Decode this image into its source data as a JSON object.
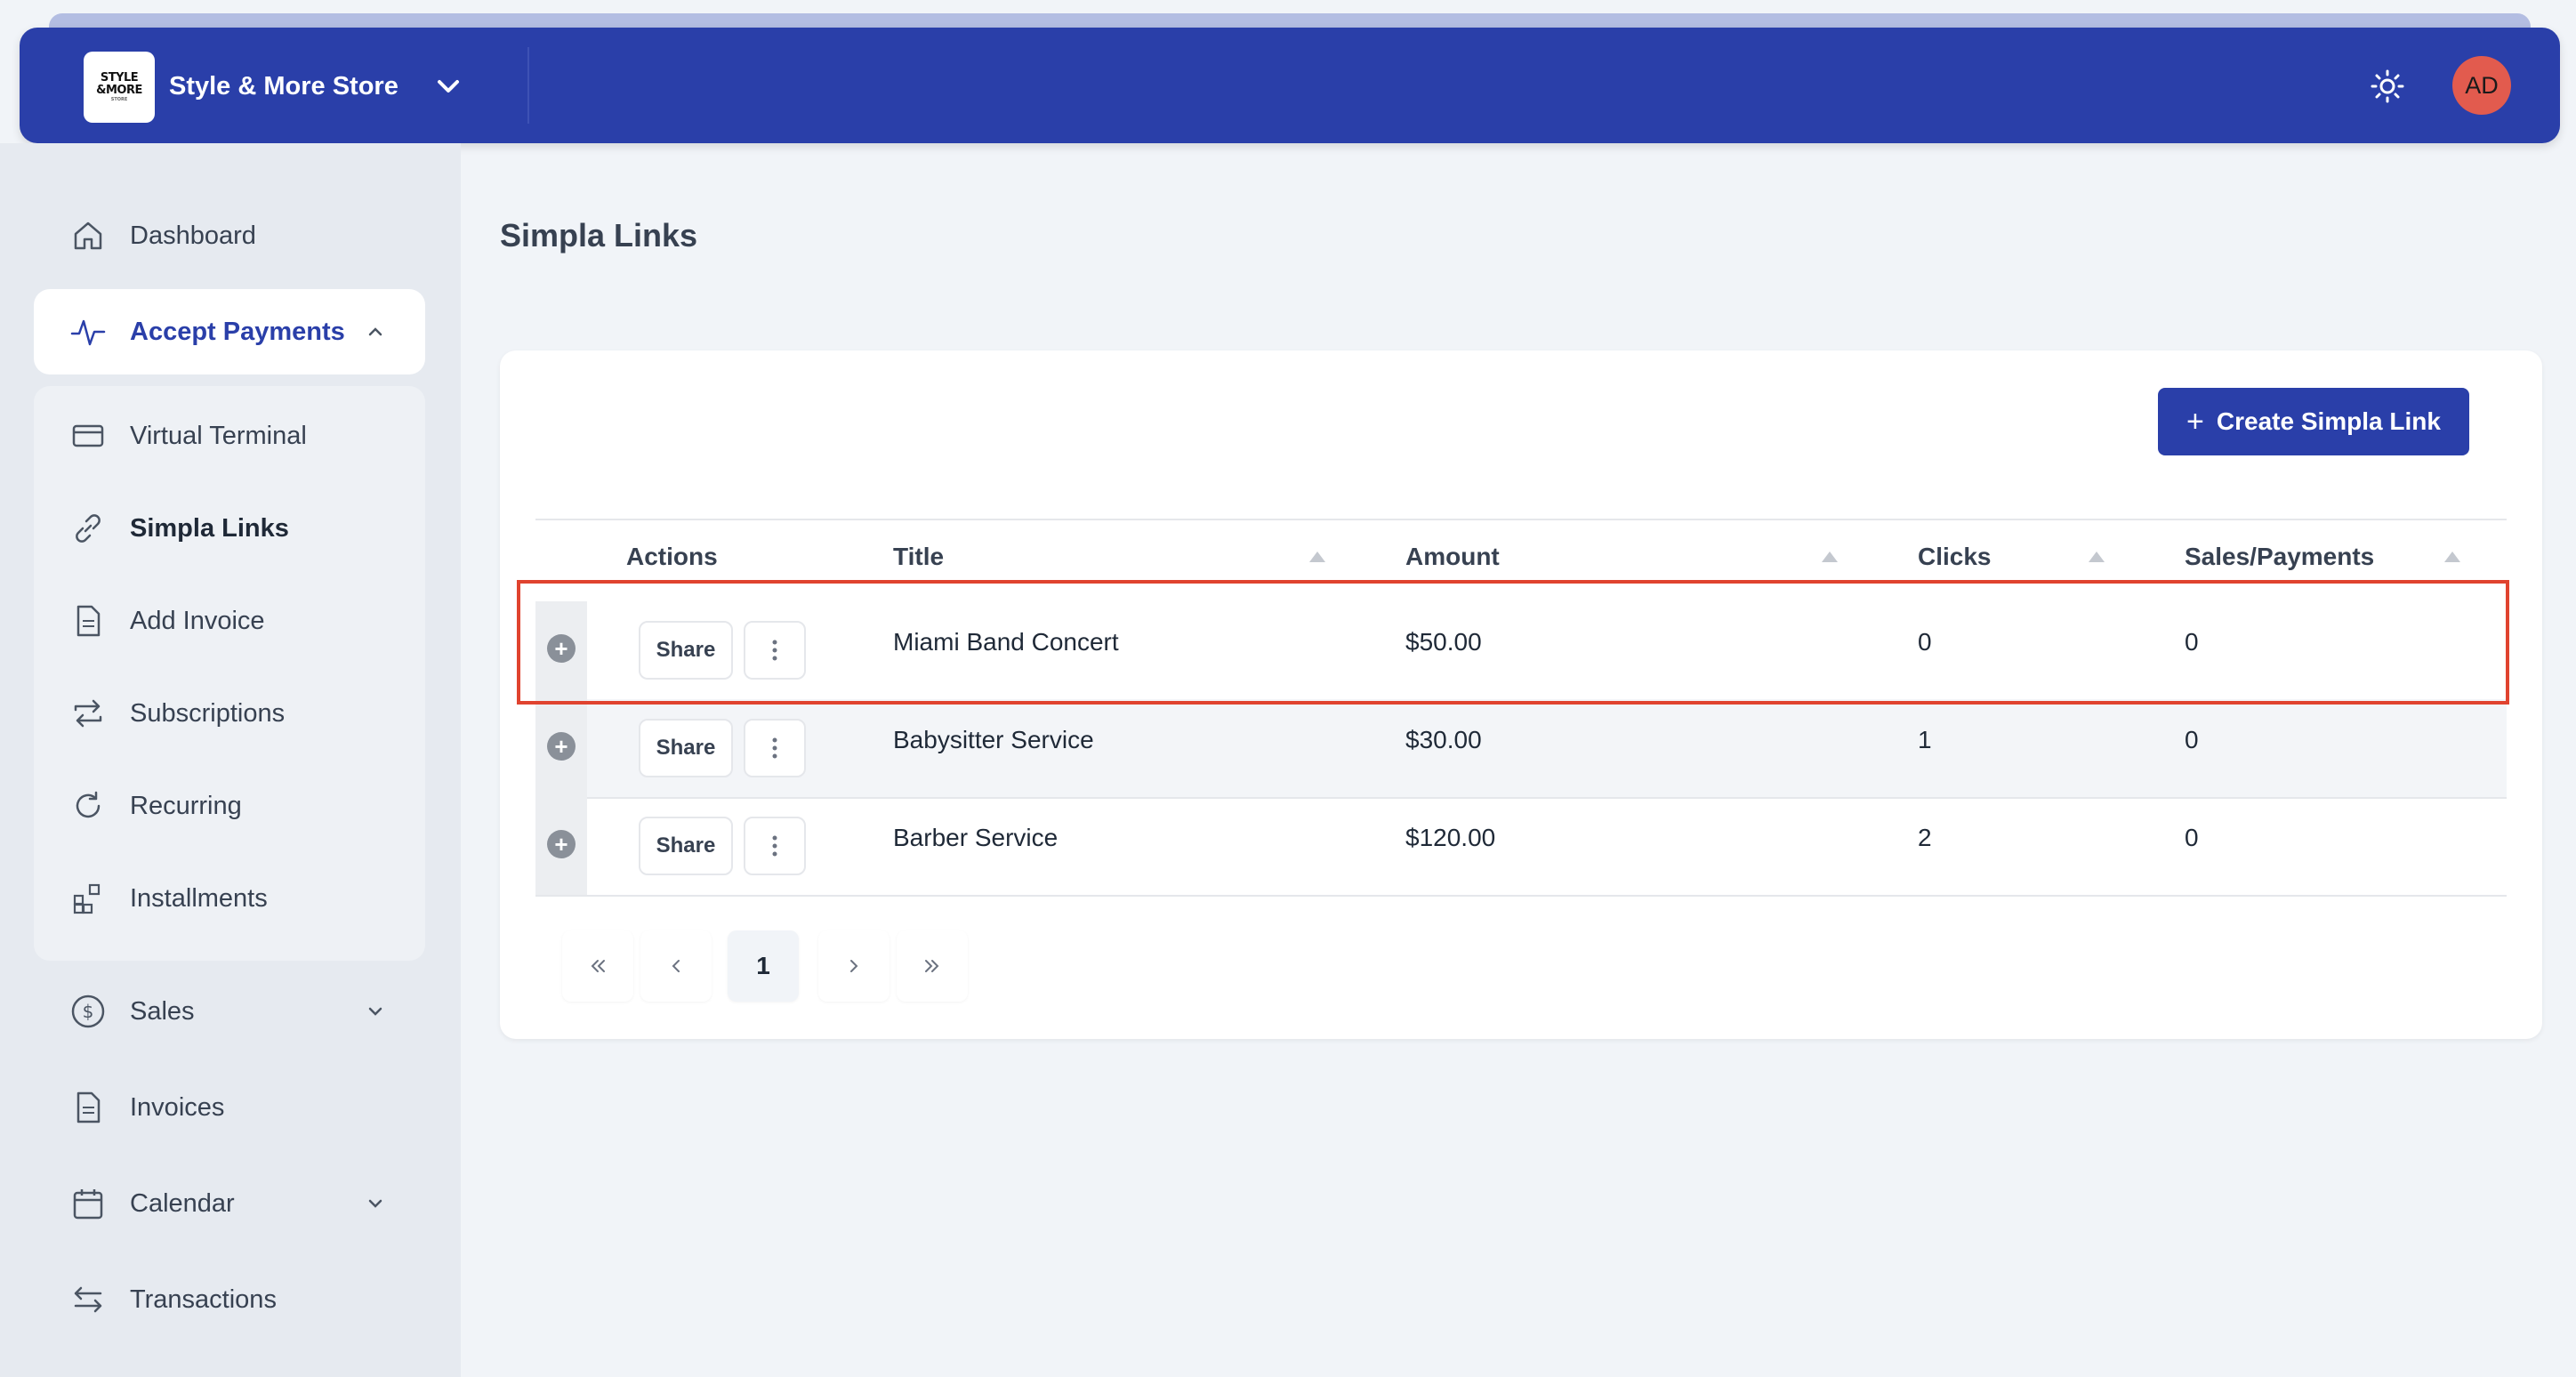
{
  "header": {
    "logo_line1": "STYLE",
    "logo_line2": "&MORE",
    "logo_line3": "STORE",
    "store_name": "Style & More Store",
    "avatar_initials": "AD",
    "brand_color": "#2a3fa9"
  },
  "sidebar": {
    "dashboard": "Dashboard",
    "accept_payments": "Accept Payments",
    "virtual_terminal": "Virtual Terminal",
    "simpla_links": "Simpla Links",
    "add_invoice": "Add Invoice",
    "subscriptions": "Subscriptions",
    "recurring": "Recurring",
    "installments": "Installments",
    "sales": "Sales",
    "invoices": "Invoices",
    "calendar": "Calendar",
    "transactions": "Transactions"
  },
  "main": {
    "page_title": "Simpla Links",
    "create_button": "Create Simpla Link",
    "columns": {
      "actions": "Actions",
      "title": "Title",
      "amount": "Amount",
      "clicks": "Clicks",
      "sales": "Sales/Payments"
    },
    "share_label": "Share",
    "rows": [
      {
        "title": "Miami Band Concert",
        "amount": "$50.00",
        "clicks": "0",
        "sales": "0"
      },
      {
        "title": "Babysitter Service",
        "amount": "$30.00",
        "clicks": "1",
        "sales": "0"
      },
      {
        "title": "Barber Service",
        "amount": "$120.00",
        "clicks": "2",
        "sales": "0"
      }
    ],
    "pagination": {
      "current_page": "1"
    },
    "highlight_color": "#e0432f"
  }
}
